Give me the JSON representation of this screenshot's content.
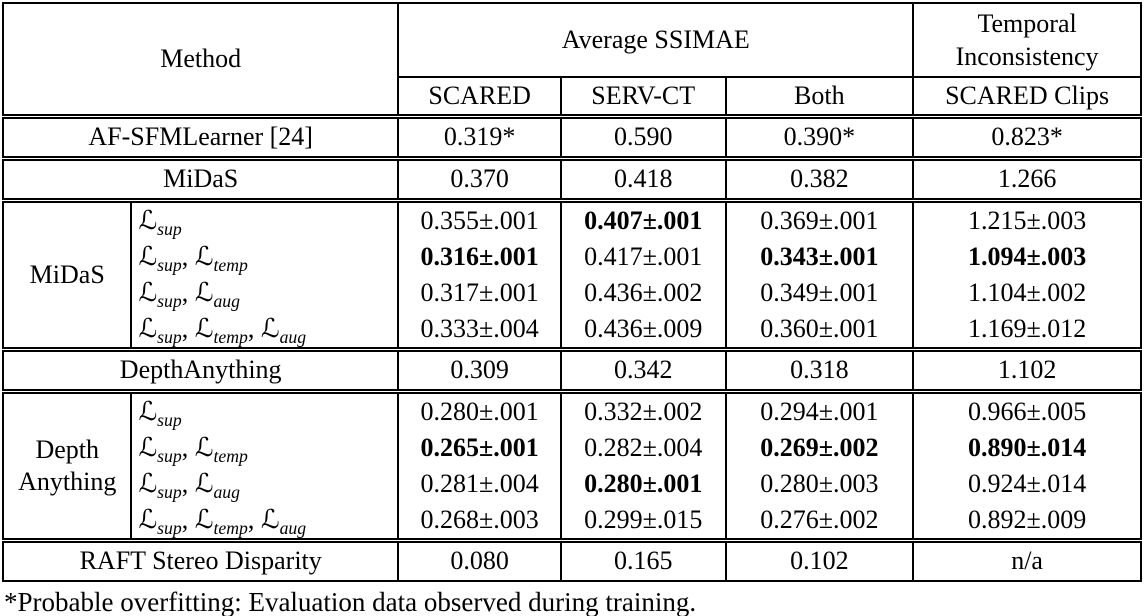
{
  "colors": {
    "text": "#000000",
    "background": "#ffffff",
    "rule": "#000000"
  },
  "loss_symbol": "ℒ",
  "table": {
    "header": {
      "method": "Method",
      "avg_ssimae": "Average SSIMAE",
      "temporal_line1": "Temporal",
      "temporal_line2": "Inconsistency",
      "sub_columns": [
        "SCARED",
        "SERV-CT",
        "Both",
        "SCARED Clips"
      ]
    },
    "rows": [
      {
        "type": "merged",
        "method": "AF-SFMLearner [24]",
        "cells": [
          {
            "v": "0.319*",
            "b": false
          },
          {
            "v": "0.590",
            "b": false
          },
          {
            "v": "0.390*",
            "b": false
          },
          {
            "v": "0.823*",
            "b": false
          }
        ]
      },
      {
        "type": "merged",
        "method": "MiDaS",
        "cells": [
          {
            "v": "0.370",
            "b": false
          },
          {
            "v": "0.418",
            "b": false
          },
          {
            "v": "0.382",
            "b": false
          },
          {
            "v": "1.266",
            "b": false
          }
        ]
      },
      {
        "type": "group",
        "method_lines": [
          "MiDaS"
        ],
        "subrows": [
          {
            "loss": [
              "sup"
            ],
            "cells": [
              {
                "v": "0.355±.001",
                "b": false
              },
              {
                "v": "0.407±.001",
                "b": true
              },
              {
                "v": "0.369±.001",
                "b": false
              },
              {
                "v": "1.215±.003",
                "b": false
              }
            ]
          },
          {
            "loss": [
              "sup",
              "temp"
            ],
            "cells": [
              {
                "v": "0.316±.001",
                "b": true
              },
              {
                "v": "0.417±.001",
                "b": false
              },
              {
                "v": "0.343±.001",
                "b": true
              },
              {
                "v": "1.094±.003",
                "b": true
              }
            ]
          },
          {
            "loss": [
              "sup",
              "aug"
            ],
            "cells": [
              {
                "v": "0.317±.001",
                "b": false
              },
              {
                "v": "0.436±.002",
                "b": false
              },
              {
                "v": "0.349±.001",
                "b": false
              },
              {
                "v": "1.104±.002",
                "b": false
              }
            ]
          },
          {
            "loss": [
              "sup",
              "temp",
              "aug"
            ],
            "cells": [
              {
                "v": "0.333±.004",
                "b": false
              },
              {
                "v": "0.436±.009",
                "b": false
              },
              {
                "v": "0.360±.001",
                "b": false
              },
              {
                "v": "1.169±.012",
                "b": false
              }
            ]
          }
        ]
      },
      {
        "type": "merged",
        "method": "DepthAnything",
        "cells": [
          {
            "v": "0.309",
            "b": false
          },
          {
            "v": "0.342",
            "b": false
          },
          {
            "v": "0.318",
            "b": false
          },
          {
            "v": "1.102",
            "b": false
          }
        ]
      },
      {
        "type": "group",
        "method_lines": [
          "Depth",
          "Anything"
        ],
        "subrows": [
          {
            "loss": [
              "sup"
            ],
            "cells": [
              {
                "v": "0.280±.001",
                "b": false
              },
              {
                "v": "0.332±.002",
                "b": false
              },
              {
                "v": "0.294±.001",
                "b": false
              },
              {
                "v": "0.966±.005",
                "b": false
              }
            ]
          },
          {
            "loss": [
              "sup",
              "temp"
            ],
            "cells": [
              {
                "v": "0.265±.001",
                "b": true
              },
              {
                "v": "0.282±.004",
                "b": false
              },
              {
                "v": "0.269±.002",
                "b": true
              },
              {
                "v": "0.890±.014",
                "b": true
              }
            ]
          },
          {
            "loss": [
              "sup",
              "aug"
            ],
            "cells": [
              {
                "v": "0.281±.004",
                "b": false
              },
              {
                "v": "0.280±.001",
                "b": true
              },
              {
                "v": "0.280±.003",
                "b": false
              },
              {
                "v": "0.924±.014",
                "b": false
              }
            ]
          },
          {
            "loss": [
              "sup",
              "temp",
              "aug"
            ],
            "cells": [
              {
                "v": "0.268±.003",
                "b": false
              },
              {
                "v": "0.299±.015",
                "b": false
              },
              {
                "v": "0.276±.002",
                "b": false
              },
              {
                "v": "0.892±.009",
                "b": false
              }
            ]
          }
        ]
      },
      {
        "type": "merged",
        "method": "RAFT Stereo Disparity",
        "cells": [
          {
            "v": "0.080",
            "b": false
          },
          {
            "v": "0.165",
            "b": false
          },
          {
            "v": "0.102",
            "b": false
          },
          {
            "v": "n/a",
            "b": false
          }
        ]
      }
    ]
  },
  "footnote": "*Probable overfitting: Evaluation data observed during training."
}
